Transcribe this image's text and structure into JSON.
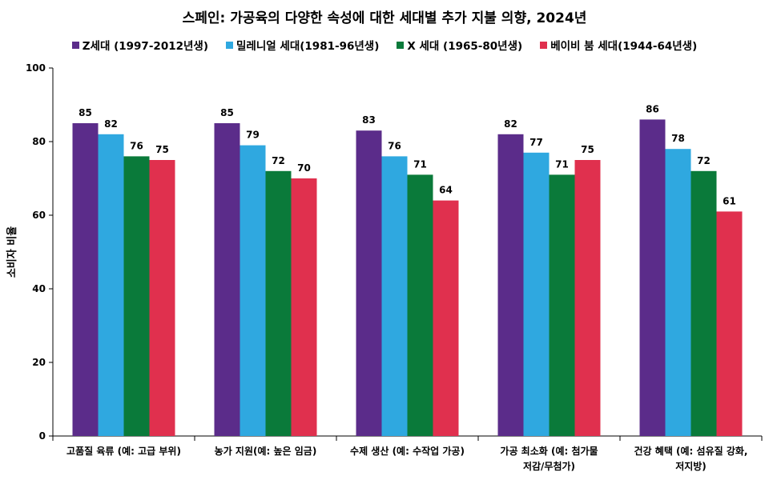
{
  "chart_data": {
    "type": "bar",
    "title": "스페인: 가공육의 다양한 속성에 대한 세대별 추가 지불 의향, 2024년",
    "ylabel": "소비자 비율",
    "xlabel": "",
    "ylim": [
      0,
      100
    ],
    "yticks": [
      0,
      20,
      40,
      60,
      80,
      100
    ],
    "grid": false,
    "legend_position": "top",
    "categories": [
      [
        "고품질 육류 (예: 고급 부위)"
      ],
      [
        "농가 지원(예: 높은 임금)"
      ],
      [
        "수제 생산 (예: 수작업 가공)"
      ],
      [
        "가공 최소화 (예: 첨가물",
        "저감/무첨가)"
      ],
      [
        "건강 혜택 (예: 섬유질 강화,",
        "저지방)"
      ]
    ],
    "series": [
      {
        "name": "Z세대 (1997-2012년생)",
        "color": "#5b2c8a",
        "values": [
          85,
          85,
          83,
          82,
          86
        ]
      },
      {
        "name": "밀레니얼 세대(1981-96년생)",
        "color": "#2fa8e0",
        "values": [
          82,
          79,
          76,
          77,
          78
        ]
      },
      {
        "name": "X 세대 (1965-80년생)",
        "color": "#0a7a3a",
        "values": [
          76,
          72,
          71,
          71,
          72
        ]
      },
      {
        "name": "베이비 붐 세대(1944-64년생)",
        "color": "#e0304e",
        "values": [
          75,
          70,
          64,
          75,
          61
        ]
      }
    ]
  }
}
